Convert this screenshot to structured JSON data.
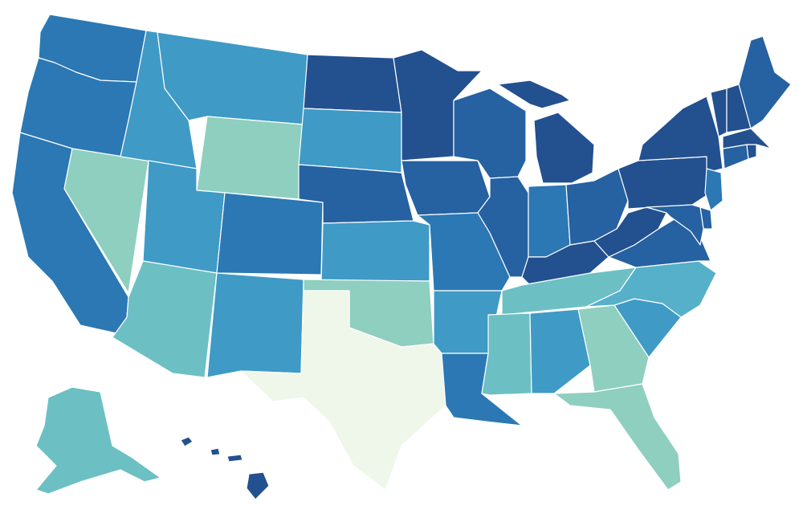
{
  "map": {
    "type": "choropleth",
    "region": "United States",
    "palette": {
      "darkest": "#23508f",
      "dark": "#2661a1",
      "mid_dark": "#2b78b4",
      "mid": "#3f9ac6",
      "mid_light": "#56b0c9",
      "light": "#6cc0c4",
      "lighter": "#8ecfbf",
      "lightest": "#eef7e9"
    },
    "states": [
      {
        "id": "WA",
        "shade": "mid_dark"
      },
      {
        "id": "OR",
        "shade": "mid_dark"
      },
      {
        "id": "CA",
        "shade": "mid_dark"
      },
      {
        "id": "NV",
        "shade": "lighter"
      },
      {
        "id": "ID",
        "shade": "mid"
      },
      {
        "id": "MT",
        "shade": "mid"
      },
      {
        "id": "WY",
        "shade": "lighter"
      },
      {
        "id": "UT",
        "shade": "mid"
      },
      {
        "id": "AZ",
        "shade": "light"
      },
      {
        "id": "CO",
        "shade": "mid_dark"
      },
      {
        "id": "NM",
        "shade": "mid"
      },
      {
        "id": "ND",
        "shade": "darkest"
      },
      {
        "id": "SD",
        "shade": "mid"
      },
      {
        "id": "NE",
        "shade": "dark"
      },
      {
        "id": "KS",
        "shade": "mid"
      },
      {
        "id": "OK",
        "shade": "lighter"
      },
      {
        "id": "TX",
        "shade": "lightest"
      },
      {
        "id": "MN",
        "shade": "darkest"
      },
      {
        "id": "IA",
        "shade": "dark"
      },
      {
        "id": "MO",
        "shade": "mid_dark"
      },
      {
        "id": "AR",
        "shade": "mid"
      },
      {
        "id": "LA",
        "shade": "mid_dark"
      },
      {
        "id": "WI",
        "shade": "dark"
      },
      {
        "id": "IL",
        "shade": "dark"
      },
      {
        "id": "MI",
        "shade": "darkest"
      },
      {
        "id": "IN",
        "shade": "mid_dark"
      },
      {
        "id": "OH",
        "shade": "dark"
      },
      {
        "id": "KY",
        "shade": "darkest"
      },
      {
        "id": "TN",
        "shade": "light"
      },
      {
        "id": "MS",
        "shade": "light"
      },
      {
        "id": "AL",
        "shade": "mid"
      },
      {
        "id": "GA",
        "shade": "lighter"
      },
      {
        "id": "FL",
        "shade": "lighter"
      },
      {
        "id": "SC",
        "shade": "mid"
      },
      {
        "id": "NC",
        "shade": "mid_light"
      },
      {
        "id": "VA",
        "shade": "dark"
      },
      {
        "id": "WV",
        "shade": "darkest"
      },
      {
        "id": "PA",
        "shade": "darkest"
      },
      {
        "id": "NY",
        "shade": "darkest"
      },
      {
        "id": "NJ",
        "shade": "mid_dark"
      },
      {
        "id": "DE",
        "shade": "dark"
      },
      {
        "id": "MD",
        "shade": "dark"
      },
      {
        "id": "CT",
        "shade": "dark"
      },
      {
        "id": "RI",
        "shade": "darkest"
      },
      {
        "id": "MA",
        "shade": "darkest"
      },
      {
        "id": "VT",
        "shade": "darkest"
      },
      {
        "id": "NH",
        "shade": "darkest"
      },
      {
        "id": "ME",
        "shade": "dark"
      },
      {
        "id": "AK",
        "shade": "light"
      },
      {
        "id": "HI",
        "shade": "darkest"
      }
    ]
  }
}
